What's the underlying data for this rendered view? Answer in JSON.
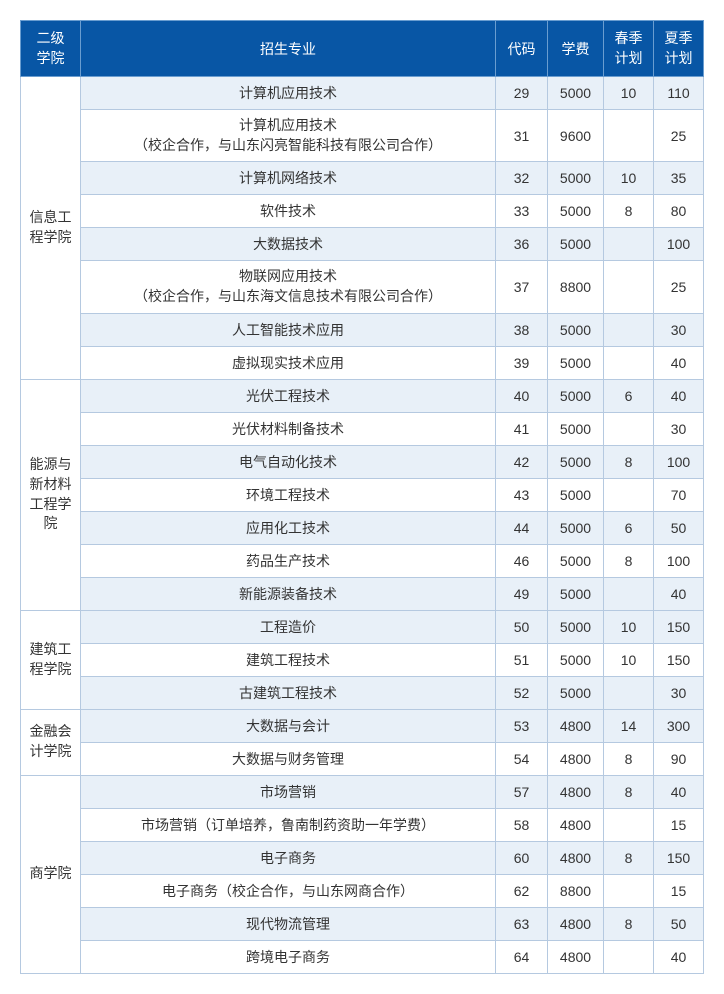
{
  "headers": {
    "college": "二级\n学院",
    "major": "招生专业",
    "code": "代码",
    "fee": "学费",
    "spring": "春季\n计划",
    "summer": "夏季\n计划"
  },
  "colors": {
    "header_bg": "#0856a5",
    "header_text": "#ffffff",
    "border": "#b5c9e0",
    "header_border": "#6a9dd0",
    "row_even": "#e8f0f8",
    "row_odd": "#ffffff",
    "text": "#333333"
  },
  "colleges": [
    {
      "name": "信息工程学院",
      "rows": [
        {
          "major": "计算机应用技术",
          "code": "29",
          "fee": "5000",
          "spring": "10",
          "summer": "110"
        },
        {
          "major": "计算机应用技术\n（校企合作，与山东闪亮智能科技有限公司合作）",
          "code": "31",
          "fee": "9600",
          "spring": "",
          "summer": "25"
        },
        {
          "major": "计算机网络技术",
          "code": "32",
          "fee": "5000",
          "spring": "10",
          "summer": "35"
        },
        {
          "major": "软件技术",
          "code": "33",
          "fee": "5000",
          "spring": "8",
          "summer": "80"
        },
        {
          "major": "大数据技术",
          "code": "36",
          "fee": "5000",
          "spring": "",
          "summer": "100"
        },
        {
          "major": "物联网应用技术\n（校企合作，与山东海文信息技术有限公司合作）",
          "code": "37",
          "fee": "8800",
          "spring": "",
          "summer": "25"
        },
        {
          "major": "人工智能技术应用",
          "code": "38",
          "fee": "5000",
          "spring": "",
          "summer": "30"
        },
        {
          "major": "虚拟现实技术应用",
          "code": "39",
          "fee": "5000",
          "spring": "",
          "summer": "40"
        }
      ]
    },
    {
      "name": "能源与新材料工程学院",
      "rows": [
        {
          "major": "光伏工程技术",
          "code": "40",
          "fee": "5000",
          "spring": "6",
          "summer": "40"
        },
        {
          "major": "光伏材料制备技术",
          "code": "41",
          "fee": "5000",
          "spring": "",
          "summer": "30"
        },
        {
          "major": "电气自动化技术",
          "code": "42",
          "fee": "5000",
          "spring": "8",
          "summer": "100"
        },
        {
          "major": "环境工程技术",
          "code": "43",
          "fee": "5000",
          "spring": "",
          "summer": "70"
        },
        {
          "major": "应用化工技术",
          "code": "44",
          "fee": "5000",
          "spring": "6",
          "summer": "50"
        },
        {
          "major": "药品生产技术",
          "code": "46",
          "fee": "5000",
          "spring": "8",
          "summer": "100"
        },
        {
          "major": "新能源装备技术",
          "code": "49",
          "fee": "5000",
          "spring": "",
          "summer": "40"
        }
      ]
    },
    {
      "name": "建筑工程学院",
      "rows": [
        {
          "major": "工程造价",
          "code": "50",
          "fee": "5000",
          "spring": "10",
          "summer": "150"
        },
        {
          "major": "建筑工程技术",
          "code": "51",
          "fee": "5000",
          "spring": "10",
          "summer": "150"
        },
        {
          "major": "古建筑工程技术",
          "code": "52",
          "fee": "5000",
          "spring": "",
          "summer": "30"
        }
      ]
    },
    {
      "name": "金融会计学院",
      "rows": [
        {
          "major": "大数据与会计",
          "code": "53",
          "fee": "4800",
          "spring": "14",
          "summer": "300"
        },
        {
          "major": "大数据与财务管理",
          "code": "54",
          "fee": "4800",
          "spring": "8",
          "summer": "90"
        }
      ]
    },
    {
      "name": "商学院",
      "rows": [
        {
          "major": "市场营销",
          "code": "57",
          "fee": "4800",
          "spring": "8",
          "summer": "40"
        },
        {
          "major": "市场营销（订单培养，鲁南制药资助一年学费）",
          "code": "58",
          "fee": "4800",
          "spring": "",
          "summer": "15"
        },
        {
          "major": "电子商务",
          "code": "60",
          "fee": "4800",
          "spring": "8",
          "summer": "150"
        },
        {
          "major": "电子商务（校企合作，与山东网商合作）",
          "code": "62",
          "fee": "8800",
          "spring": "",
          "summer": "15"
        },
        {
          "major": "现代物流管理",
          "code": "63",
          "fee": "4800",
          "spring": "8",
          "summer": "50"
        },
        {
          "major": "跨境电子商务",
          "code": "64",
          "fee": "4800",
          "spring": "",
          "summer": "40"
        }
      ]
    }
  ]
}
